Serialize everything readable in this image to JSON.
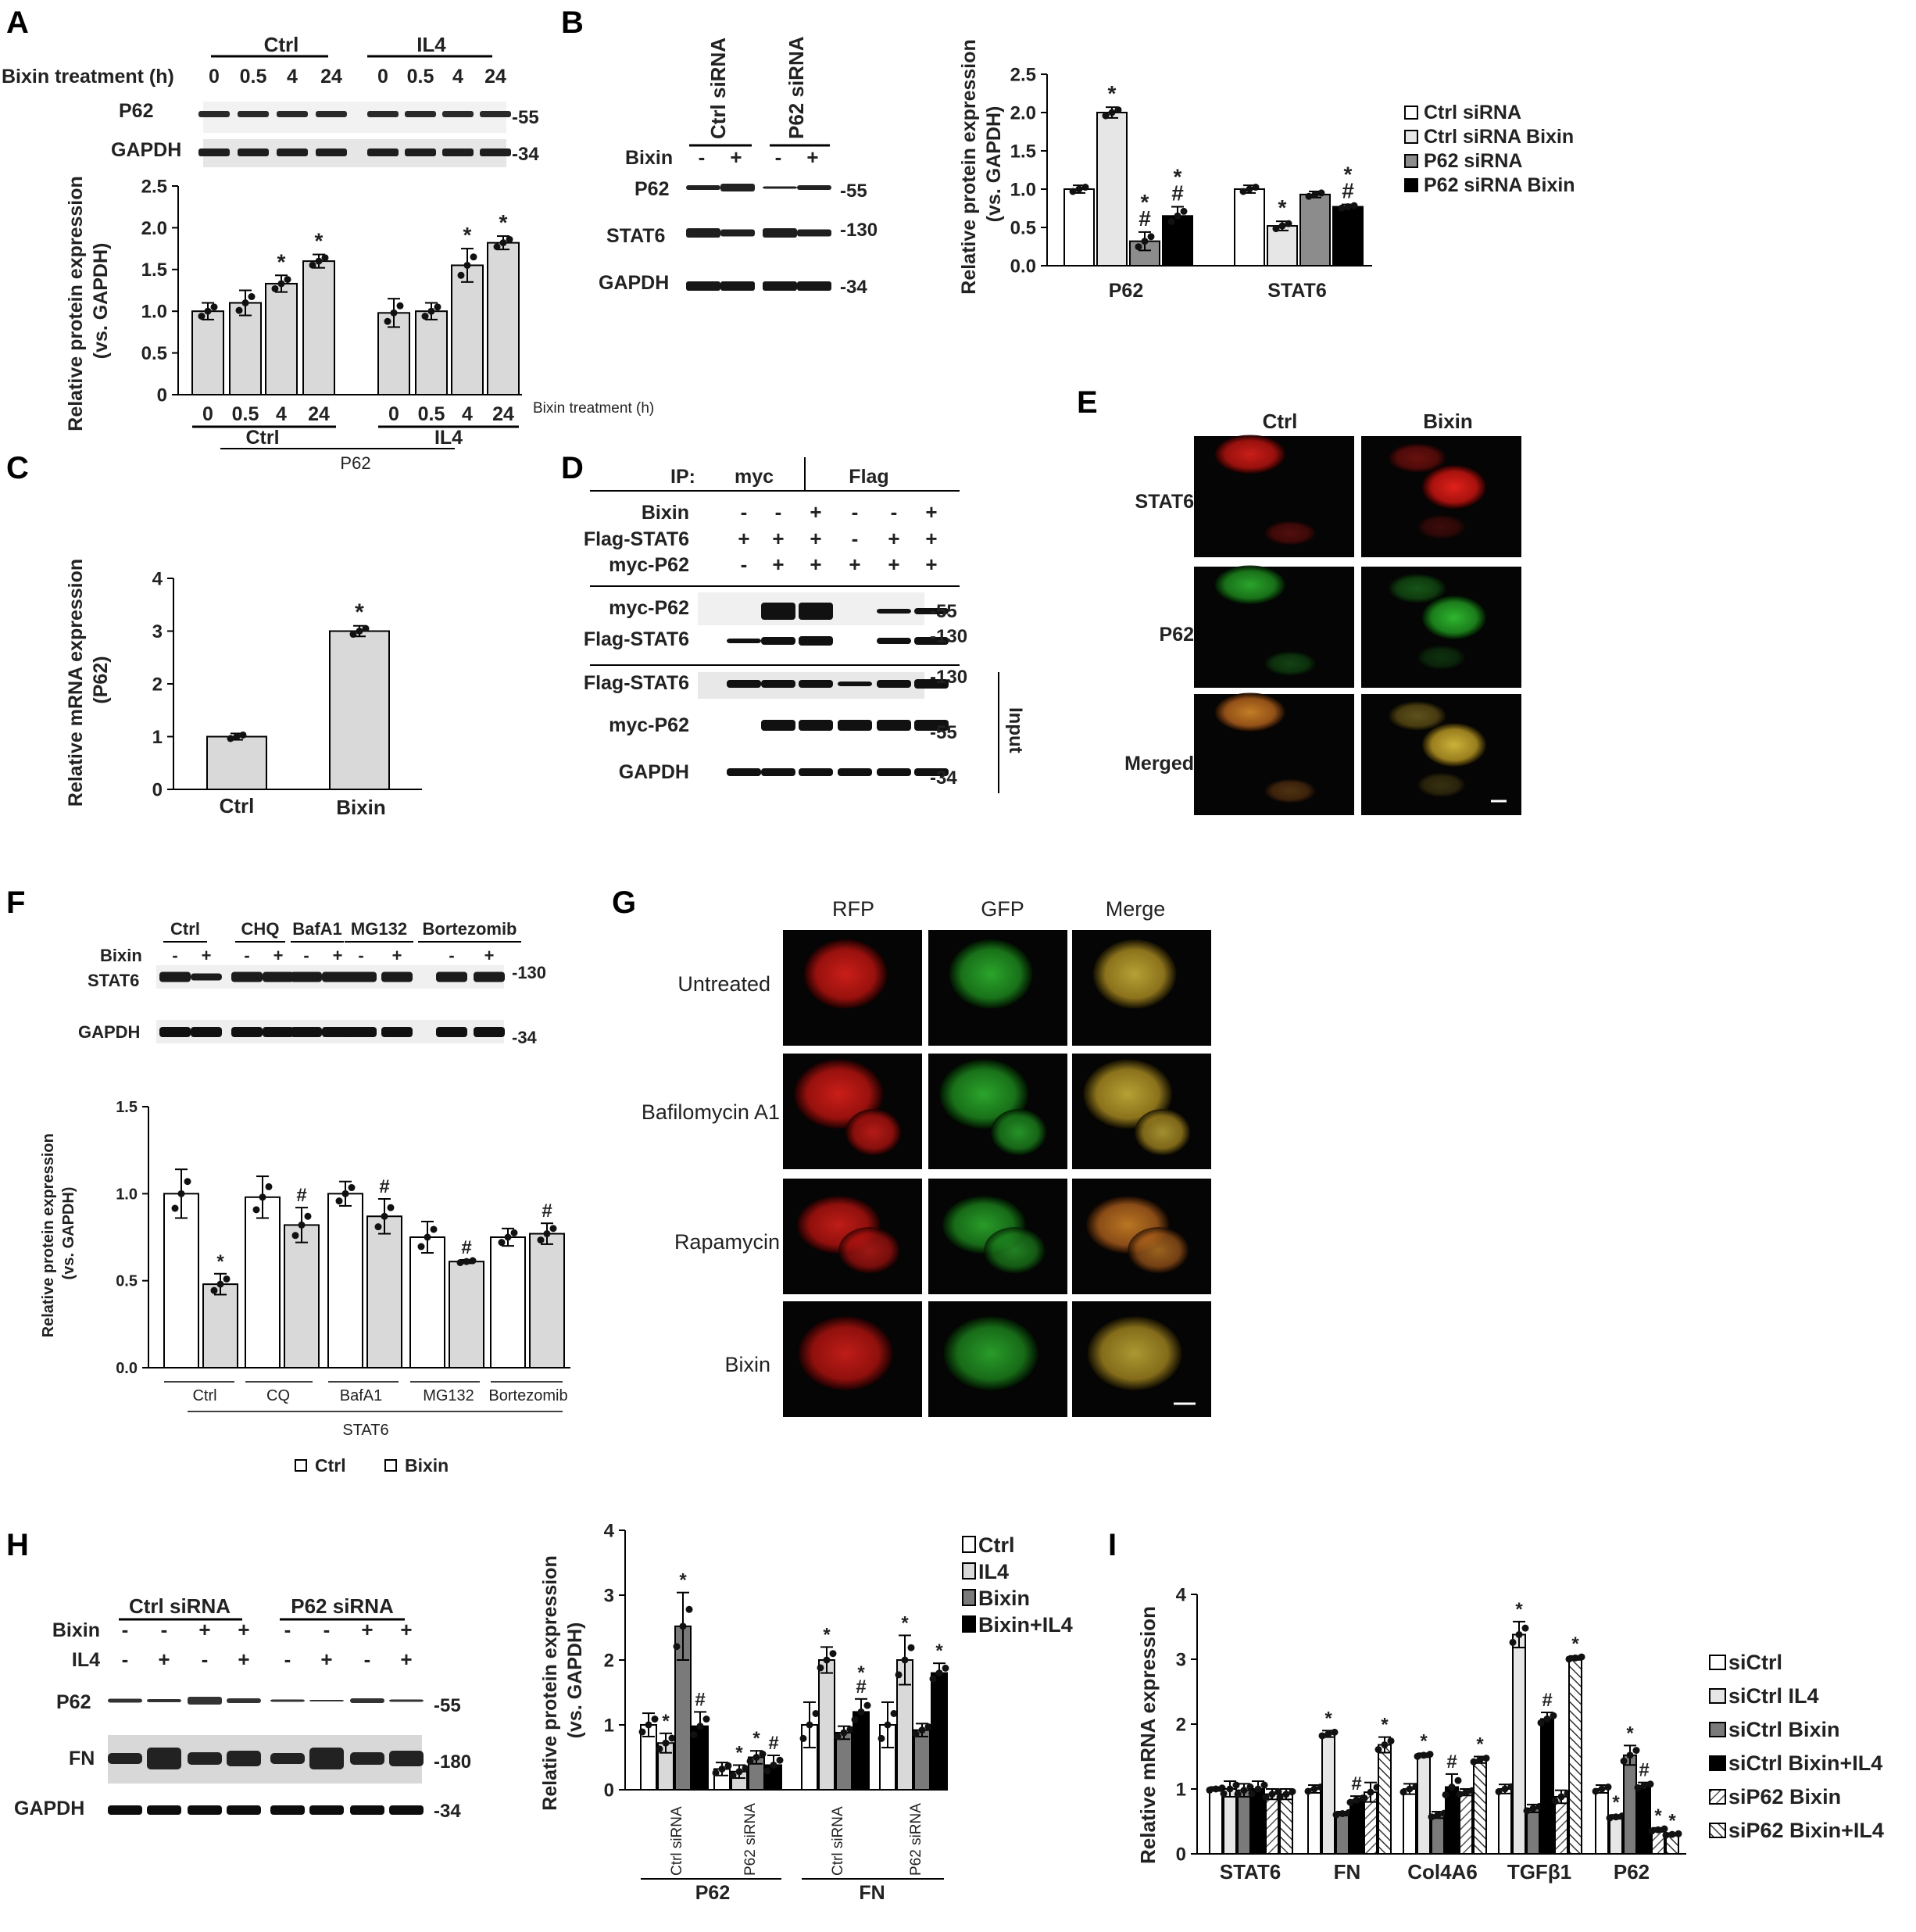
{
  "panel_labels": [
    "A",
    "B",
    "C",
    "D",
    "E",
    "F",
    "G",
    "H",
    "I"
  ],
  "common": {
    "ylabel": "Relative protein expression (vs. GAPDH)",
    "ylabel_line1": "Relative protein expression",
    "ylabel_line2": "(vs. GAPDH)",
    "gapdh": "GAPDH",
    "mw34": "-34",
    "mw55": "-55",
    "mw130": "-130",
    "mw180": "-180"
  },
  "panelA": {
    "groups": [
      "Ctrl",
      "IL4"
    ],
    "treatment_label": "Bixin treatment (h)",
    "times": [
      "0",
      "0.5",
      "4",
      "24"
    ],
    "blot_rows": [
      "P62",
      "GAPDH"
    ],
    "ylabel_line1": "Relative protein expression",
    "ylabel_line2": "(vs. GAPDH)",
    "xtitle": "P62",
    "xaxis_note": "Bixin treatment (h)",
    "ticks": [
      "0",
      "0.5",
      "1.0",
      "1.5",
      "2.0",
      "2.5"
    ]
  },
  "panelB": {
    "lanes_header": [
      "Ctrl siRNA",
      "P62 siRNA"
    ],
    "bixin_label": "Bixin",
    "bixin_signs": [
      "-",
      "+",
      "-",
      "+"
    ],
    "blot_rows": [
      "P62",
      "STAT6",
      "GAPDH"
    ],
    "ylabel_line1": "Relative protein expression",
    "ylabel_line2": "(vs. GAPDH)",
    "ticks": [
      "0.0",
      "0.5",
      "1.0",
      "1.5",
      "2.0",
      "2.5"
    ],
    "legend": [
      "Ctrl siRNA",
      "Ctrl siRNA Bixin",
      "P62 siRNA",
      "P62 siRNA Bixin"
    ],
    "categories": [
      "P62",
      "STAT6"
    ]
  },
  "panelC": {
    "ylabel_line1": "Relative mRNA expression",
    "ylabel_line2": "(P62)",
    "ticks": [
      "0",
      "1",
      "2",
      "3",
      "4"
    ],
    "categories": [
      "Ctrl",
      "Bixin"
    ]
  },
  "panelD": {
    "ip_label": "IP:",
    "ip_groups": [
      "myc",
      "Flag"
    ],
    "conditions": [
      {
        "label": "Bixin",
        "signs": [
          "-",
          "-",
          "+",
          "-",
          "-",
          "+"
        ]
      },
      {
        "label": "Flag-STAT6",
        "signs": [
          "+",
          "+",
          "+",
          "-",
          "+",
          "+"
        ]
      },
      {
        "label": "myc-P62",
        "signs": [
          "-",
          "+",
          "+",
          "+",
          "+",
          "+"
        ]
      }
    ],
    "ip_rows": [
      "myc-P62",
      "Flag-STAT6"
    ],
    "input_rows": [
      "Flag-STAT6",
      "myc-P62",
      "GAPDH"
    ],
    "input_label": "Input"
  },
  "panelE": {
    "columns": [
      "Ctrl",
      "Bixin"
    ],
    "rows": [
      "STAT6",
      "P62",
      "Merged"
    ]
  },
  "panelF": {
    "treatments": [
      "Ctrl",
      "CHQ",
      "BafA1",
      "MG132",
      "Bortezomib"
    ],
    "bixin_label": "Bixin",
    "blot_rows": [
      "STAT6",
      "GAPDH"
    ],
    "ylabel_line1": "Relative protein expression",
    "ylabel_line2": "(vs. GAPDH)",
    "ticks": [
      "0.0",
      "0.5",
      "1.0",
      "1.5"
    ],
    "xcategories": [
      "Ctrl",
      "CQ",
      "BafA1",
      "MG132",
      "Bortezomib"
    ],
    "xtitle": "STAT6",
    "legend": [
      "Ctrl",
      "Bixin"
    ]
  },
  "panelG": {
    "columns": [
      "RFP",
      "GFP",
      "Merge"
    ],
    "rows": [
      "Untreated",
      "Bafilomycin A1",
      "Rapamycin",
      "Bixin"
    ]
  },
  "panelH": {
    "lanes_header": [
      "Ctrl siRNA",
      "P62 siRNA"
    ],
    "conditions": [
      {
        "label": "Bixin",
        "signs": [
          "-",
          "-",
          "+",
          "+",
          "-",
          "-",
          "+",
          "+"
        ]
      },
      {
        "label": "IL4",
        "signs": [
          "-",
          "+",
          "-",
          "+",
          "-",
          "+",
          "-",
          "+"
        ]
      }
    ],
    "blot_rows": [
      "P62",
      "FN",
      "GAPDH"
    ],
    "ylabel_line1": "Relative protein expression",
    "ylabel_line2": "(vs. GAPDH)",
    "ticks": [
      "0",
      "1",
      "2",
      "3",
      "4"
    ],
    "legend": [
      "Ctrl",
      "IL4",
      "Bixin",
      "Bixin+IL4"
    ],
    "sub_groups": [
      "Ctrl siRNA",
      "P62 siRNA",
      "Ctrl siRNA",
      "P62 siRNA"
    ],
    "main_groups": [
      "P62",
      "FN"
    ]
  },
  "panelI": {
    "ylabel": "Relative mRNA expression",
    "ticks": [
      "0",
      "1",
      "2",
      "3",
      "4"
    ],
    "categories": [
      "STAT6",
      "FN",
      "Col4A6",
      "TGFβ1",
      "P62"
    ],
    "legend": [
      "siCtrl",
      "siCtrl IL4",
      "siCtrl Bixin",
      "siCtrl Bixin+IL4",
      "siP62 Bixin",
      "siP62 Bixin+IL4"
    ]
  },
  "chart_data": [
    {
      "panel": "A",
      "type": "bar",
      "ylabel": "Relative protein expression (vs. GAPDH)",
      "ylim": [
        0,
        2.5
      ],
      "categories": [
        "Ctrl 0",
        "Ctrl 0.5",
        "Ctrl 4",
        "Ctrl 24",
        "IL4 0",
        "IL4 0.5",
        "IL4 4",
        "IL4 24"
      ],
      "values": [
        1.0,
        1.1,
        1.33,
        1.6,
        0.98,
        1.0,
        1.55,
        1.82
      ],
      "errors": [
        0.1,
        0.15,
        0.1,
        0.08,
        0.17,
        0.1,
        0.2,
        0.08
      ],
      "annotations": [
        "",
        "",
        "*",
        "*",
        "",
        "",
        "*",
        "*"
      ]
    },
    {
      "panel": "B",
      "type": "bar",
      "ylabel": "Relative protein expression (vs. GAPDH)",
      "ylim": [
        0,
        2.5
      ],
      "categories": [
        "P62",
        "STAT6"
      ],
      "series": [
        {
          "name": "Ctrl siRNA",
          "values": [
            1.0,
            1.0
          ],
          "errors": [
            0.05,
            0.05
          ],
          "annotations": [
            "",
            ""
          ]
        },
        {
          "name": "Ctrl siRNA Bixin",
          "values": [
            2.0,
            0.52
          ],
          "errors": [
            0.07,
            0.06
          ],
          "annotations": [
            "*",
            "*"
          ]
        },
        {
          "name": "P62 siRNA",
          "values": [
            0.32,
            0.93
          ],
          "errors": [
            0.12,
            0.04
          ],
          "annotations": [
            "*#",
            ""
          ]
        },
        {
          "name": "P62 siRNA Bixin",
          "values": [
            0.65,
            0.77
          ],
          "errors": [
            0.12,
            0.03
          ],
          "annotations": [
            "*#",
            "*#"
          ]
        }
      ]
    },
    {
      "panel": "C",
      "type": "bar",
      "ylabel": "Relative mRNA expression (P62)",
      "ylim": [
        0,
        4
      ],
      "categories": [
        "Ctrl",
        "Bixin"
      ],
      "values": [
        1.0,
        3.0
      ],
      "errors": [
        0.06,
        0.1
      ],
      "annotations": [
        "",
        "*"
      ]
    },
    {
      "panel": "F",
      "type": "bar",
      "ylabel": "Relative protein expression (vs. GAPDH)",
      "ylim": [
        0,
        1.5
      ],
      "categories": [
        "Ctrl",
        "CQ",
        "BafA1",
        "MG132",
        "Bortezomib"
      ],
      "series": [
        {
          "name": "Ctrl",
          "values": [
            1.0,
            0.98,
            1.0,
            0.75,
            0.75
          ],
          "errors": [
            0.14,
            0.12,
            0.07,
            0.09,
            0.05
          ],
          "annotations": [
            "",
            "",
            "",
            "",
            ""
          ]
        },
        {
          "name": "Bixin",
          "values": [
            0.48,
            0.82,
            0.87,
            0.61,
            0.77
          ],
          "errors": [
            0.06,
            0.1,
            0.1,
            0.01,
            0.06
          ],
          "annotations": [
            "*",
            "#",
            "#",
            "#",
            "#"
          ]
        }
      ]
    },
    {
      "panel": "H",
      "type": "bar",
      "ylabel": "Relative protein expression (vs. GAPDH)",
      "ylim": [
        0,
        4
      ],
      "categories": [
        "P62 Ctrl siRNA",
        "P62 P62 siRNA",
        "FN Ctrl siRNA",
        "FN P62 siRNA"
      ],
      "series": [
        {
          "name": "Ctrl",
          "values": [
            1.0,
            0.32,
            1.0,
            1.0
          ],
          "errors": [
            0.18,
            0.1,
            0.35,
            0.35
          ],
          "annotations": [
            "",
            "",
            "",
            ""
          ]
        },
        {
          "name": "IL4",
          "values": [
            0.72,
            0.28,
            2.0,
            2.0
          ],
          "errors": [
            0.15,
            0.1,
            0.2,
            0.38
          ],
          "annotations": [
            "*",
            "*",
            "*",
            "*"
          ]
        },
        {
          "name": "Bixin",
          "values": [
            2.52,
            0.5,
            0.88,
            0.92
          ],
          "errors": [
            0.52,
            0.1,
            0.1,
            0.1
          ],
          "annotations": [
            "*",
            "*",
            "",
            ""
          ]
        },
        {
          "name": "Bixin+IL4",
          "values": [
            0.98,
            0.38,
            1.2,
            1.8
          ],
          "errors": [
            0.22,
            0.15,
            0.2,
            0.15
          ],
          "annotations": [
            "#",
            "#",
            "*#",
            "*"
          ]
        }
      ]
    },
    {
      "panel": "I",
      "type": "bar",
      "ylabel": "Relative mRNA expression",
      "ylim": [
        0,
        4
      ],
      "categories": [
        "STAT6",
        "FN",
        "Col4A6",
        "TGFβ1",
        "P62"
      ],
      "series": [
        {
          "name": "siCtrl",
          "values": [
            1.0,
            1.0,
            1.0,
            1.0,
            1.0
          ],
          "errors": [
            0.03,
            0.06,
            0.08,
            0.07,
            0.06
          ],
          "annotations": [
            "",
            "",
            "",
            "",
            ""
          ]
        },
        {
          "name": "siCtrl IL4",
          "values": [
            1.0,
            1.85,
            1.52,
            3.38,
            0.57
          ],
          "errors": [
            0.12,
            0.05,
            0.03,
            0.2,
            0.03
          ],
          "annotations": [
            "",
            "*",
            "*",
            "*",
            "*"
          ]
        },
        {
          "name": "siCtrl Bixin",
          "values": [
            0.98,
            0.62,
            0.6,
            0.7,
            1.52
          ],
          "errors": [
            0.1,
            0.03,
            0.05,
            0.06,
            0.15
          ],
          "annotations": [
            "",
            "",
            "",
            "",
            "*"
          ]
        },
        {
          "name": "siCtrl Bixin+IL4",
          "values": [
            1.0,
            0.83,
            1.03,
            2.08,
            1.05
          ],
          "errors": [
            0.12,
            0.06,
            0.2,
            0.1,
            0.05
          ],
          "annotations": [
            "",
            "#",
            "#",
            "#",
            "#"
          ]
        },
        {
          "name": "siP62 Bixin",
          "values": [
            0.92,
            0.95,
            0.95,
            0.88,
            0.37
          ],
          "errors": [
            0.08,
            0.15,
            0.05,
            0.1,
            0.03
          ],
          "annotations": [
            "",
            "",
            "",
            "",
            "*"
          ]
        },
        {
          "name": "siP62 Bixin+IL4",
          "values": [
            0.92,
            1.68,
            1.45,
            3.02,
            0.3
          ],
          "errors": [
            0.08,
            0.12,
            0.05,
            0.03,
            0.02
          ],
          "annotations": [
            "",
            "*",
            "*",
            "*",
            "*"
          ]
        }
      ]
    }
  ]
}
